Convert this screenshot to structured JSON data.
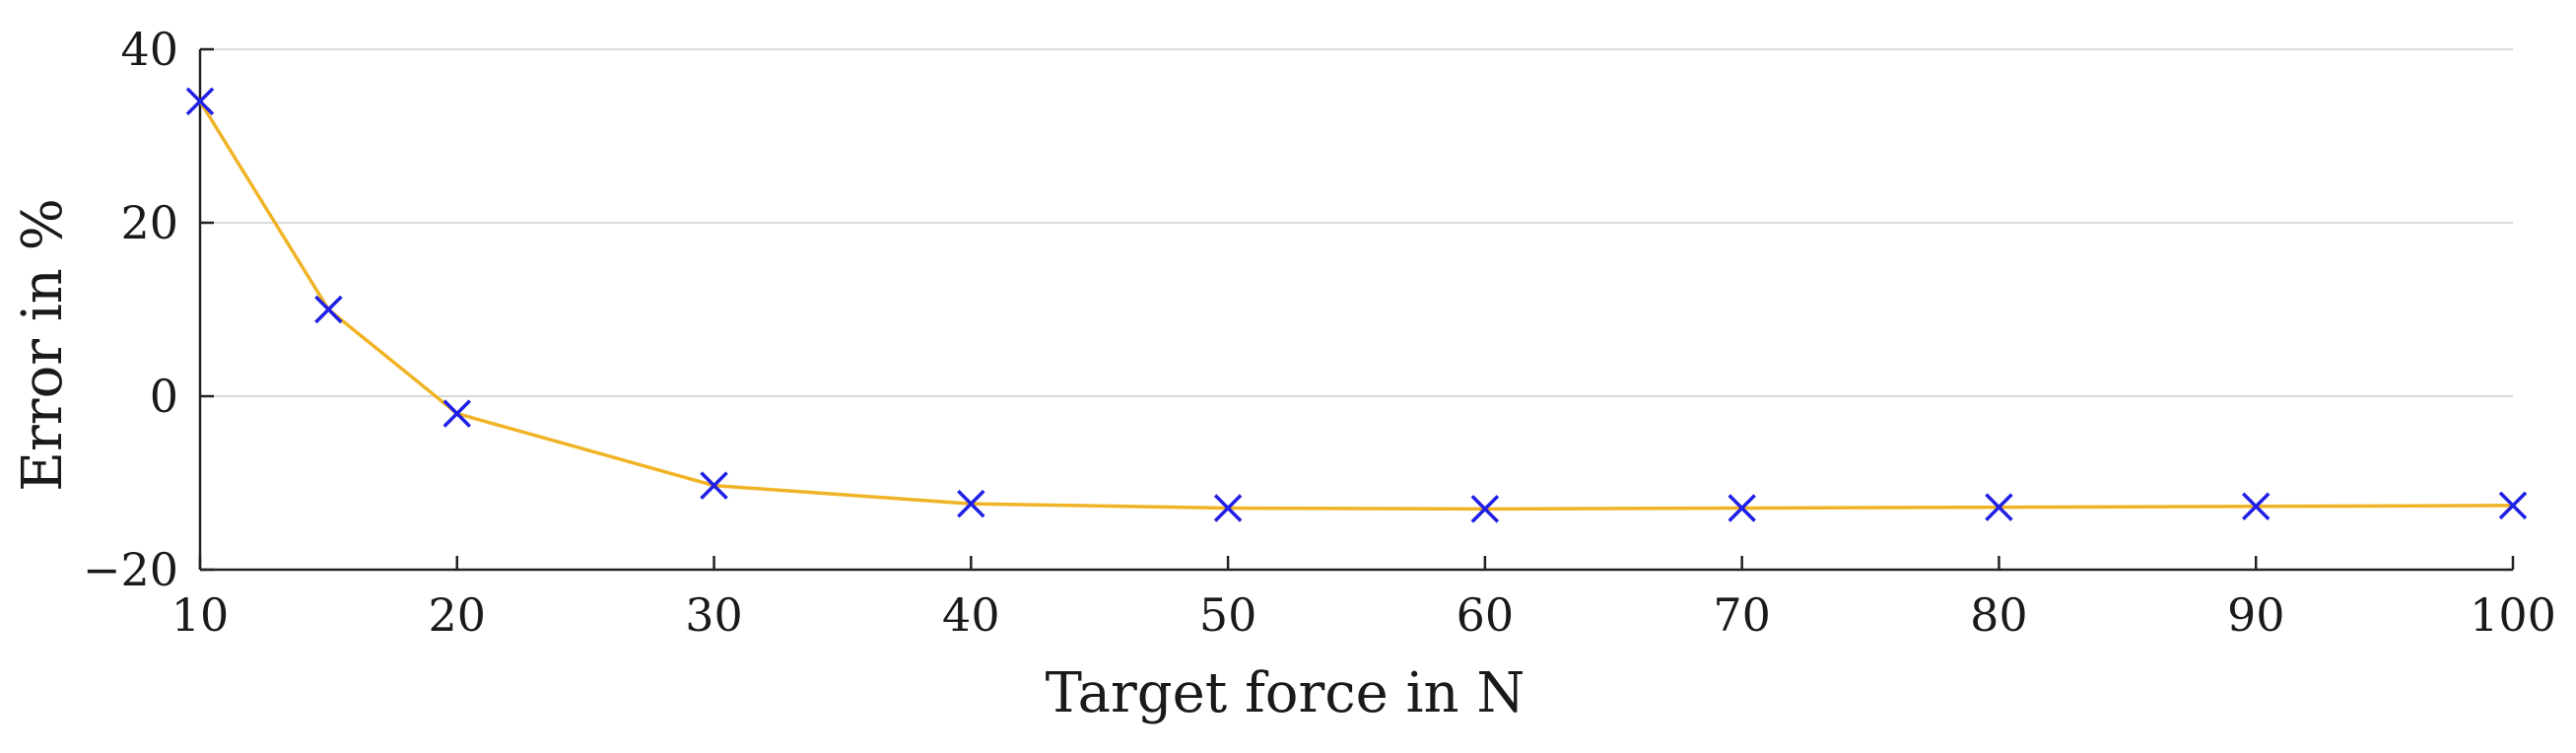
{
  "chart_data": {
    "type": "line",
    "title": "",
    "xlabel": "Target force in N",
    "ylabel": "Error in %",
    "xlim": [
      10,
      100
    ],
    "ylim": [
      -20,
      40
    ],
    "x_ticks": [
      10,
      20,
      30,
      40,
      50,
      60,
      70,
      80,
      90,
      100
    ],
    "y_ticks": [
      -20,
      0,
      20,
      40
    ],
    "y_tick_labels": [
      "−20",
      "0",
      "20",
      "40"
    ],
    "grid": "horizontal",
    "legend": "none",
    "series": [
      {
        "x": [
          10,
          15,
          20,
          30,
          40,
          50,
          60,
          70,
          80,
          90,
          100
        ],
        "y": [
          34,
          10,
          -2,
          -10.3,
          -12.4,
          -12.9,
          -13.0,
          -12.9,
          -12.8,
          -12.7,
          -12.6
        ],
        "line_color": "#f0b325",
        "marker": "x",
        "marker_color": "#1f1fe6"
      }
    ]
  }
}
